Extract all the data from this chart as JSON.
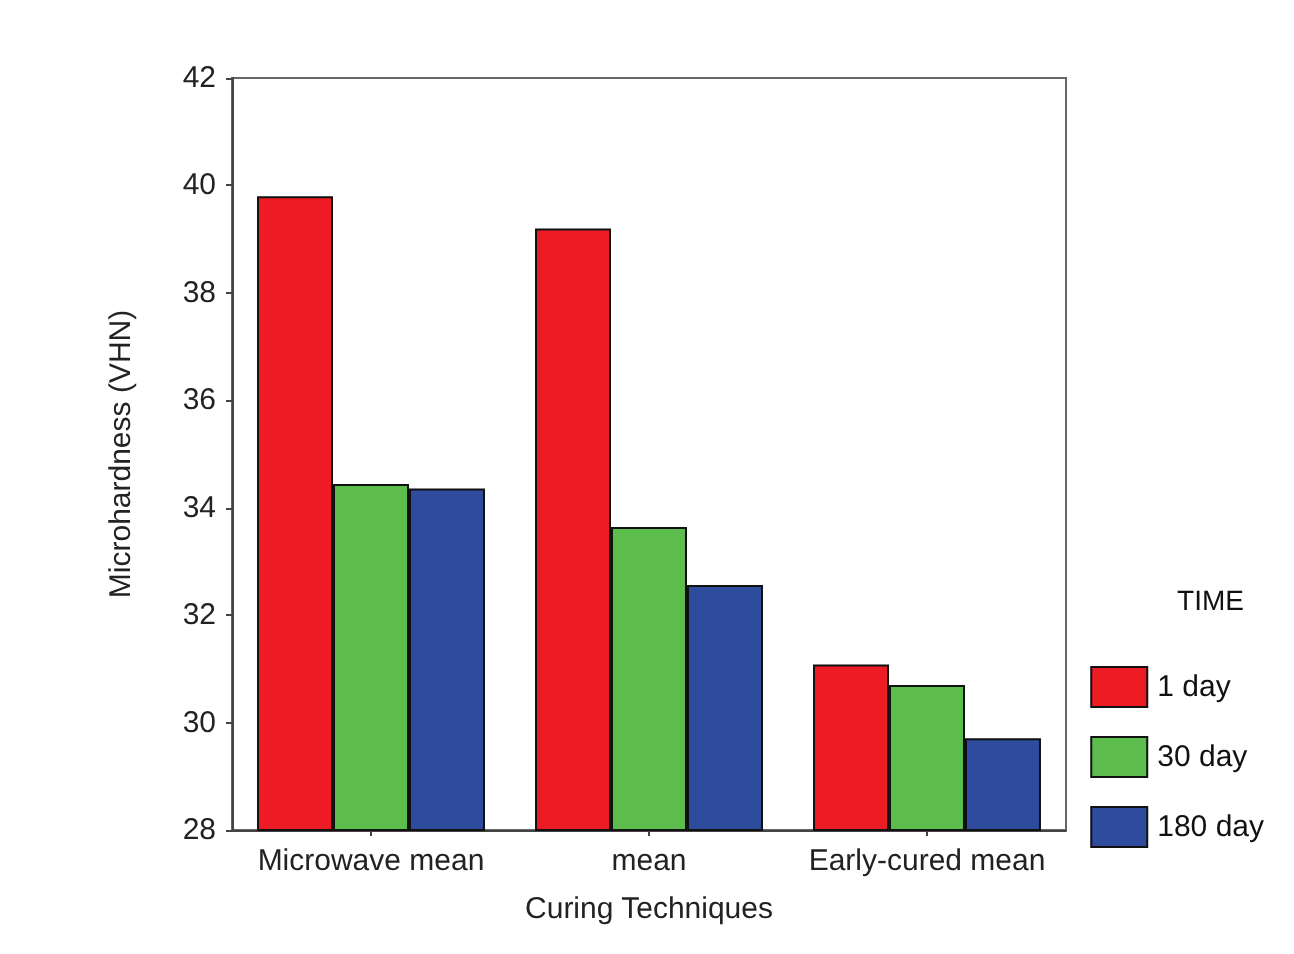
{
  "chart_data": {
    "type": "bar",
    "xlabel": "Curing Techniques",
    "ylabel": "Microhardness (VHN)",
    "legend_title": "TIME",
    "legend": "right",
    "categories": [
      "Microwave mean",
      "mean",
      "Early-cured mean"
    ],
    "series": [
      {
        "name": "1 day",
        "color": "#ed1c24",
        "values": [
          39.8,
          39.2,
          31.08
        ]
      },
      {
        "name": "30 day",
        "color": "#5cbc4c",
        "values": [
          34.44,
          33.64,
          30.7
        ]
      },
      {
        "name": "180 day",
        "color": "#2e4b9e",
        "values": [
          34.36,
          32.56,
          29.71
        ]
      }
    ],
    "ylim": [
      28,
      42
    ],
    "yticks": [
      28,
      30,
      32,
      34,
      36,
      38,
      40,
      42
    ],
    "grid": false
  }
}
